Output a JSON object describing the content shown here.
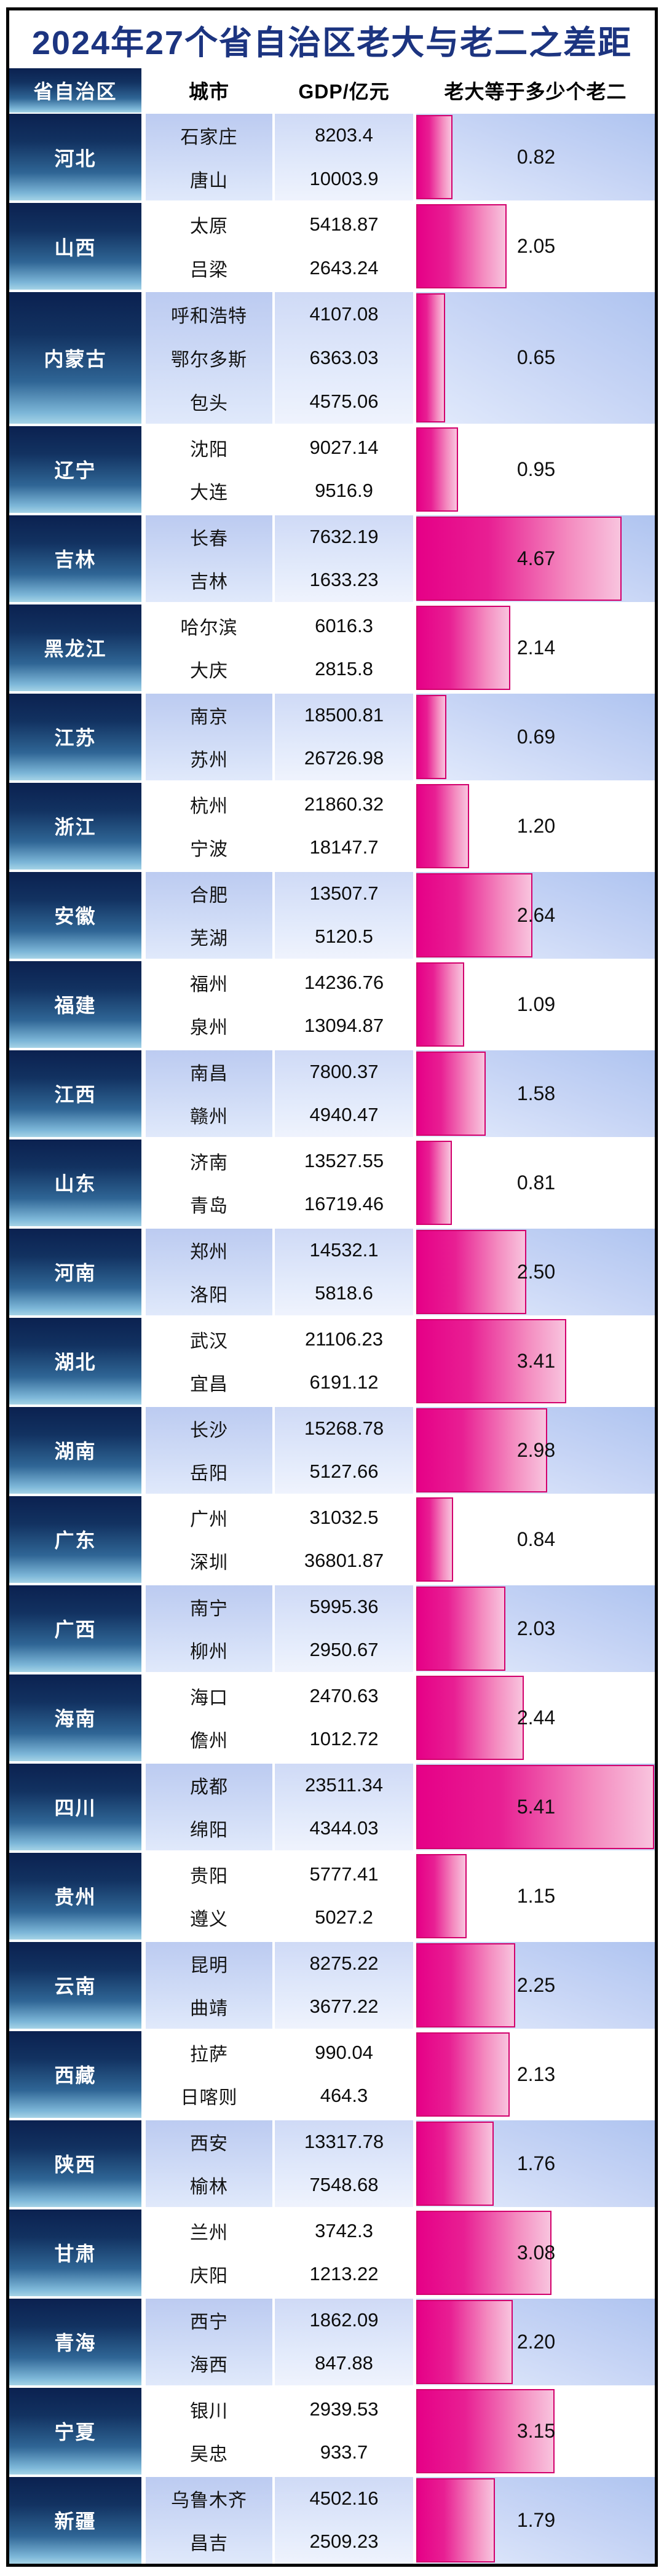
{
  "title": "2024年27个省自治区老大与老二之差距",
  "chart_data": {
    "type": "bar",
    "orientation": "horizontal",
    "title": "2024年27个省自治区老大与老二之差距",
    "xlabel": "老大等于多少个老二",
    "xlim": [
      0,
      5.41
    ],
    "grid": false,
    "legend": "none",
    "columns": {
      "province": "省自治区",
      "city": "城市",
      "gdp": "GDP/亿元",
      "ratio": "老大等于多少个老二"
    },
    "rows": [
      {
        "province": "河北",
        "cities": [
          {
            "name": "石家庄",
            "gdp": "8203.4"
          },
          {
            "name": "唐山",
            "gdp": "10003.9"
          }
        ],
        "ratio": "0.82"
      },
      {
        "province": "山西",
        "cities": [
          {
            "name": "太原",
            "gdp": "5418.87"
          },
          {
            "name": "吕梁",
            "gdp": "2643.24"
          }
        ],
        "ratio": "2.05"
      },
      {
        "province": "内蒙古",
        "cities": [
          {
            "name": "呼和浩特",
            "gdp": "4107.08"
          },
          {
            "name": "鄂尔多斯",
            "gdp": "6363.03"
          },
          {
            "name": "包头",
            "gdp": "4575.06"
          }
        ],
        "ratio": "0.65"
      },
      {
        "province": "辽宁",
        "cities": [
          {
            "name": "沈阳",
            "gdp": "9027.14"
          },
          {
            "name": "大连",
            "gdp": "9516.9"
          }
        ],
        "ratio": "0.95"
      },
      {
        "province": "吉林",
        "cities": [
          {
            "name": "长春",
            "gdp": "7632.19"
          },
          {
            "name": "吉林",
            "gdp": "1633.23"
          }
        ],
        "ratio": "4.67"
      },
      {
        "province": "黑龙江",
        "cities": [
          {
            "name": "哈尔滨",
            "gdp": "6016.3"
          },
          {
            "name": "大庆",
            "gdp": "2815.8"
          }
        ],
        "ratio": "2.14"
      },
      {
        "province": "江苏",
        "cities": [
          {
            "name": "南京",
            "gdp": "18500.81"
          },
          {
            "name": "苏州",
            "gdp": "26726.98"
          }
        ],
        "ratio": "0.69"
      },
      {
        "province": "浙江",
        "cities": [
          {
            "name": "杭州",
            "gdp": "21860.32"
          },
          {
            "name": "宁波",
            "gdp": "18147.7"
          }
        ],
        "ratio": "1.20"
      },
      {
        "province": "安徽",
        "cities": [
          {
            "name": "合肥",
            "gdp": "13507.7"
          },
          {
            "name": "芜湖",
            "gdp": "5120.5"
          }
        ],
        "ratio": "2.64"
      },
      {
        "province": "福建",
        "cities": [
          {
            "name": "福州",
            "gdp": "14236.76"
          },
          {
            "name": "泉州",
            "gdp": "13094.87"
          }
        ],
        "ratio": "1.09"
      },
      {
        "province": "江西",
        "cities": [
          {
            "name": "南昌",
            "gdp": "7800.37"
          },
          {
            "name": "赣州",
            "gdp": "4940.47"
          }
        ],
        "ratio": "1.58"
      },
      {
        "province": "山东",
        "cities": [
          {
            "name": "济南",
            "gdp": "13527.55"
          },
          {
            "name": "青岛",
            "gdp": "16719.46"
          }
        ],
        "ratio": "0.81"
      },
      {
        "province": "河南",
        "cities": [
          {
            "name": "郑州",
            "gdp": "14532.1"
          },
          {
            "name": "洛阳",
            "gdp": "5818.6"
          }
        ],
        "ratio": "2.50"
      },
      {
        "province": "湖北",
        "cities": [
          {
            "name": "武汉",
            "gdp": "21106.23"
          },
          {
            "name": "宜昌",
            "gdp": "6191.12"
          }
        ],
        "ratio": "3.41"
      },
      {
        "province": "湖南",
        "cities": [
          {
            "name": "长沙",
            "gdp": "15268.78"
          },
          {
            "name": "岳阳",
            "gdp": "5127.66"
          }
        ],
        "ratio": "2.98"
      },
      {
        "province": "广东",
        "cities": [
          {
            "name": "广州",
            "gdp": "31032.5"
          },
          {
            "name": "深圳",
            "gdp": "36801.87"
          }
        ],
        "ratio": "0.84"
      },
      {
        "province": "广西",
        "cities": [
          {
            "name": "南宁",
            "gdp": "5995.36"
          },
          {
            "name": "柳州",
            "gdp": "2950.67"
          }
        ],
        "ratio": "2.03"
      },
      {
        "province": "海南",
        "cities": [
          {
            "name": "海口",
            "gdp": "2470.63"
          },
          {
            "name": "儋州",
            "gdp": "1012.72"
          }
        ],
        "ratio": "2.44"
      },
      {
        "province": "四川",
        "cities": [
          {
            "name": "成都",
            "gdp": "23511.34"
          },
          {
            "name": "绵阳",
            "gdp": "4344.03"
          }
        ],
        "ratio": "5.41"
      },
      {
        "province": "贵州",
        "cities": [
          {
            "name": "贵阳",
            "gdp": "5777.41"
          },
          {
            "name": "遵义",
            "gdp": "5027.2"
          }
        ],
        "ratio": "1.15"
      },
      {
        "province": "云南",
        "cities": [
          {
            "name": "昆明",
            "gdp": "8275.22"
          },
          {
            "name": "曲靖",
            "gdp": "3677.22"
          }
        ],
        "ratio": "2.25"
      },
      {
        "province": "西藏",
        "cities": [
          {
            "name": "拉萨",
            "gdp": "990.04"
          },
          {
            "name": "日喀则",
            "gdp": "464.3"
          }
        ],
        "ratio": "2.13"
      },
      {
        "province": "陕西",
        "cities": [
          {
            "name": "西安",
            "gdp": "13317.78"
          },
          {
            "name": "榆林",
            "gdp": "7548.68"
          }
        ],
        "ratio": "1.76"
      },
      {
        "province": "甘肃",
        "cities": [
          {
            "name": "兰州",
            "gdp": "3742.3"
          },
          {
            "name": "庆阳",
            "gdp": "1213.22"
          }
        ],
        "ratio": "3.08"
      },
      {
        "province": "青海",
        "cities": [
          {
            "name": "西宁",
            "gdp": "1862.09"
          },
          {
            "name": "海西",
            "gdp": "847.88"
          }
        ],
        "ratio": "2.20"
      },
      {
        "province": "宁夏",
        "cities": [
          {
            "name": "银川",
            "gdp": "2939.53"
          },
          {
            "name": "吴忠",
            "gdp": "933.7"
          }
        ],
        "ratio": "3.15"
      },
      {
        "province": "新疆",
        "cities": [
          {
            "name": "乌鲁木齐",
            "gdp": "4502.16"
          },
          {
            "name": "昌吉",
            "gdp": "2509.23"
          }
        ],
        "ratio": "1.79"
      }
    ],
    "colors": {
      "title_text": "#1c3480",
      "bar_fill_start": "#e60087",
      "bar_fill_end": "#f8c4de",
      "bar_border": "#d2006c",
      "province_gradient_top": "#0b2150",
      "province_gradient_bottom": "#a5d3e6",
      "row_blue": "#bccbf1",
      "row_white": "#ffffff",
      "table_border": "#000000"
    }
  }
}
